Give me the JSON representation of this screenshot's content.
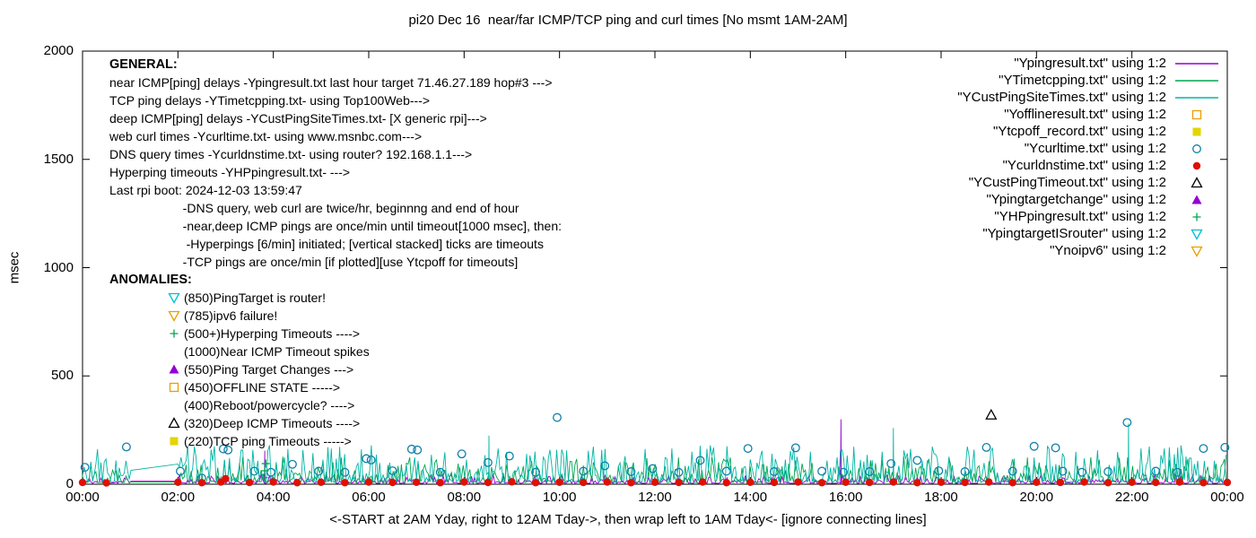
{
  "chart_data": {
    "type": "line",
    "title": "pi20 Dec 16  near/far ICMP/TCP ping and curl times [No msmt 1AM-2AM]",
    "xlabel": "<-START at 2AM Yday, right to 12AM Tday->, then wrap left to 1AM Tday<- [ignore connecting lines]",
    "ylabel": "msec",
    "xlim": [
      0,
      24
    ],
    "ylim": [
      0,
      2000
    ],
    "grid": false,
    "legend_position": "top-right",
    "no_measurement_gap_hours": [
      1,
      2
    ],
    "xticks": {
      "hours": [
        0,
        2,
        4,
        6,
        8,
        10,
        12,
        14,
        16,
        18,
        20,
        22,
        24
      ],
      "labels": [
        "00:00",
        "02:00",
        "04:00",
        "06:00",
        "08:00",
        "10:00",
        "12:00",
        "14:00",
        "16:00",
        "18:00",
        "20:00",
        "22:00",
        "00:00"
      ]
    },
    "yticks": {
      "values": [
        0,
        500,
        1000,
        1500,
        2000
      ],
      "labels": [
        "0",
        "500",
        "1000",
        "1500",
        "2000"
      ]
    },
    "series": [
      {
        "name": "Ypingresult.txt",
        "type": "noisy-line",
        "color": "#9400d3",
        "base": 4,
        "amp": 40,
        "seed": 11,
        "spikes": [
          [
            3.82,
            155
          ],
          [
            15.9,
            300
          ]
        ]
      },
      {
        "name": "YTimetcpping.txt",
        "type": "noisy-line",
        "color": "#00a550",
        "base": 8,
        "amp": 120,
        "seed": 22,
        "spikes": []
      },
      {
        "name": "YCustPingSiteTimes.txt",
        "type": "noisy-line",
        "color": "#00b5a5",
        "base": 10,
        "amp": 170,
        "seed": 33,
        "spikes": [
          [
            8.52,
            225
          ],
          [
            17.0,
            260
          ],
          [
            21.93,
            280
          ]
        ]
      },
      {
        "name": "Yofflineresult.txt",
        "type": "points",
        "marker": "square-open",
        "color": "#e8a000",
        "points": []
      },
      {
        "name": "Ytcpoff_record.txt",
        "type": "points",
        "marker": "square-filled",
        "color": "#e3d500",
        "points": []
      },
      {
        "name": "Ycurltime.txt",
        "type": "points",
        "marker": "circle-open",
        "color": "#0f7fa8",
        "points": [
          [
            0.05,
            78
          ],
          [
            0.92,
            172
          ],
          [
            2.05,
            60
          ],
          [
            2.5,
            28
          ],
          [
            2.95,
            163
          ],
          [
            3.05,
            158
          ],
          [
            3.6,
            60
          ],
          [
            3.95,
            55
          ],
          [
            4.4,
            92
          ],
          [
            4.95,
            60
          ],
          [
            5.5,
            55
          ],
          [
            5.95,
            118
          ],
          [
            6.05,
            112
          ],
          [
            6.5,
            62
          ],
          [
            6.9,
            162
          ],
          [
            7.02,
            158
          ],
          [
            7.5,
            55
          ],
          [
            7.95,
            140
          ],
          [
            8.5,
            100
          ],
          [
            8.95,
            130
          ],
          [
            9.5,
            55
          ],
          [
            9.95,
            308
          ],
          [
            10.5,
            60
          ],
          [
            10.95,
            85
          ],
          [
            11.5,
            58
          ],
          [
            11.95,
            72
          ],
          [
            12.5,
            55
          ],
          [
            12.95,
            110
          ],
          [
            13.5,
            60
          ],
          [
            13.95,
            165
          ],
          [
            14.5,
            58
          ],
          [
            14.95,
            168
          ],
          [
            15.5,
            60
          ],
          [
            15.95,
            55
          ],
          [
            16.5,
            58
          ],
          [
            16.95,
            95
          ],
          [
            17.5,
            110
          ],
          [
            17.95,
            62
          ],
          [
            18.5,
            58
          ],
          [
            18.95,
            170
          ],
          [
            19.5,
            60
          ],
          [
            19.95,
            175
          ],
          [
            20.4,
            168
          ],
          [
            20.55,
            60
          ],
          [
            20.95,
            55
          ],
          [
            21.5,
            58
          ],
          [
            21.9,
            285
          ],
          [
            22.5,
            60
          ],
          [
            22.95,
            55
          ],
          [
            23.5,
            165
          ],
          [
            23.95,
            170
          ]
        ]
      },
      {
        "name": "Ycurldnstime.txt",
        "type": "points",
        "marker": "circle-filled",
        "color": "#e01000",
        "points": [
          [
            0,
            8
          ],
          [
            0.5,
            6
          ],
          [
            2,
            9
          ],
          [
            2.5,
            7
          ],
          [
            2.9,
            10
          ],
          [
            3,
            25
          ],
          [
            3.5,
            8
          ],
          [
            4,
            10
          ],
          [
            4.5,
            7
          ],
          [
            5,
            9
          ],
          [
            5.5,
            7
          ],
          [
            6,
            10
          ],
          [
            6.5,
            8
          ],
          [
            7,
            9
          ],
          [
            7.5,
            7
          ],
          [
            8,
            10
          ],
          [
            8.5,
            8
          ],
          [
            9,
            11
          ],
          [
            9.5,
            7
          ],
          [
            10,
            9
          ],
          [
            10.5,
            8
          ],
          [
            11,
            10
          ],
          [
            11.5,
            7
          ],
          [
            12,
            9
          ],
          [
            12.5,
            8
          ],
          [
            13,
            10
          ],
          [
            13.5,
            7
          ],
          [
            14,
            9
          ],
          [
            14.5,
            8
          ],
          [
            15,
            10
          ],
          [
            15.5,
            7
          ],
          [
            16,
            9
          ],
          [
            16.5,
            8
          ],
          [
            17,
            10
          ],
          [
            17.5,
            7
          ],
          [
            18,
            9
          ],
          [
            18.5,
            8
          ],
          [
            19,
            10
          ],
          [
            19.5,
            7
          ],
          [
            20,
            9
          ],
          [
            20.5,
            8
          ],
          [
            21,
            10
          ],
          [
            21.5,
            7
          ],
          [
            22,
            9
          ],
          [
            22.5,
            8
          ],
          [
            23,
            10
          ],
          [
            23.5,
            7
          ],
          [
            24,
            8
          ]
        ]
      },
      {
        "name": "YCustPingTimeout.txt",
        "type": "points",
        "marker": "triangle-open",
        "color": "#000000",
        "points": [
          [
            19.05,
            320
          ]
        ]
      },
      {
        "name": "Ypingtargetchange",
        "type": "points",
        "marker": "triangle-filled",
        "color": "#9400d3",
        "points": []
      },
      {
        "name": "YHPpingresult.txt",
        "type": "points",
        "marker": "plus",
        "color": "#00a550",
        "points": [
          [
            3.8,
            30
          ],
          [
            3.82,
            62
          ],
          [
            3.84,
            95
          ]
        ]
      },
      {
        "name": "YpingtargetISrouter",
        "type": "points",
        "marker": "tri-down-open",
        "color": "#00c0d0",
        "points": []
      },
      {
        "name": "Ynoipv6",
        "type": "points",
        "marker": "tri-down-open",
        "color": "#e8a000",
        "points": []
      }
    ]
  },
  "legend": {
    "entries": [
      {
        "label": "\"Ypingresult.txt\" using 1:2",
        "marker": "line",
        "color": "#9400d3"
      },
      {
        "label": "\"YTimetcpping.txt\" using 1:2",
        "marker": "line",
        "color": "#00a550"
      },
      {
        "label": "\"YCustPingSiteTimes.txt\" using 1:2",
        "marker": "line",
        "color": "#00b5a5"
      },
      {
        "label": "\"Yofflineresult.txt\" using 1:2",
        "marker": "square-open",
        "color": "#e8a000"
      },
      {
        "label": "\"Ytcpoff_record.txt\" using 1:2",
        "marker": "square-filled",
        "color": "#e3d500"
      },
      {
        "label": "\"Ycurltime.txt\" using 1:2",
        "marker": "circle-open",
        "color": "#0f7fa8"
      },
      {
        "label": "\"Ycurldnstime.txt\" using 1:2",
        "marker": "circle-filled",
        "color": "#e01000"
      },
      {
        "label": "\"YCustPingTimeout.txt\" using 1:2",
        "marker": "triangle-open",
        "color": "#000000"
      },
      {
        "label": "\"Ypingtargetchange\" using 1:2",
        "marker": "triangle-filled",
        "color": "#9400d3"
      },
      {
        "label": "\"YHPpingresult.txt\" using 1:2",
        "marker": "plus",
        "color": "#00a550"
      },
      {
        "label": "\"YpingtargetISrouter\" using 1:2",
        "marker": "tri-down-open",
        "color": "#00c0d0"
      },
      {
        "label": "\"Ynoipv6\" using 1:2",
        "marker": "tri-down-open",
        "color": "#e8a000"
      }
    ]
  },
  "general": {
    "heading": "GENERAL:",
    "lines": [
      "near ICMP[ping] delays -Ypingresult.txt last hour target 71.46.27.189 hop#3 --->",
      "TCP ping delays -YTimetcpping.txt- using Top100Web--->",
      "deep ICMP[ping] delays -YCustPingSiteTimes.txt- [X generic rpi]--->",
      "web curl times -Ycurltime.txt- using www.msnbc.com--->",
      "DNS query times -Ycurldnstime.txt- using router? 192.168.1.1--->",
      "Hyperping timeouts -YHPpingresult.txt- --->",
      "Last rpi boot: 2024-12-03 13:59:47",
      "                     -DNS query, web curl are twice/hr, beginnng and end of hour",
      "                     -near,deep ICMP pings are once/min until timeout[1000 msec], then:",
      "                      -Hyperpings [6/min] initiated; [vertical stacked] ticks are timeouts",
      "                     -TCP pings are once/min [if plotted][use Ytcpoff for timeouts]"
    ]
  },
  "anomalies": {
    "heading": "ANOMALIES:",
    "items": [
      {
        "marker": "tri-down-open",
        "color": "#00c0d0",
        "text": "(850)PingTarget is router!"
      },
      {
        "marker": "tri-down-open",
        "color": "#e8a000",
        "text": "(785)ipv6 failure!"
      },
      {
        "marker": "plus",
        "color": "#00a550",
        "text": "(500+)Hyperping Timeouts ---->"
      },
      {
        "marker": null,
        "color": null,
        "text": "(1000)Near ICMP Timeout spikes"
      },
      {
        "marker": "triangle-filled",
        "color": "#9400d3",
        "text": "(550)Ping Target Changes --->"
      },
      {
        "marker": "square-open",
        "color": "#e8a000",
        "text": "(450)OFFLINE STATE ----->"
      },
      {
        "marker": null,
        "color": null,
        "text": "(400)Reboot/powercycle? ---->"
      },
      {
        "marker": "triangle-open",
        "color": "#000000",
        "text": "(320)Deep ICMP Timeouts ---->"
      },
      {
        "marker": "square-filled",
        "color": "#e3d500",
        "text": "(220)TCP ping Timeouts ----->"
      }
    ]
  }
}
